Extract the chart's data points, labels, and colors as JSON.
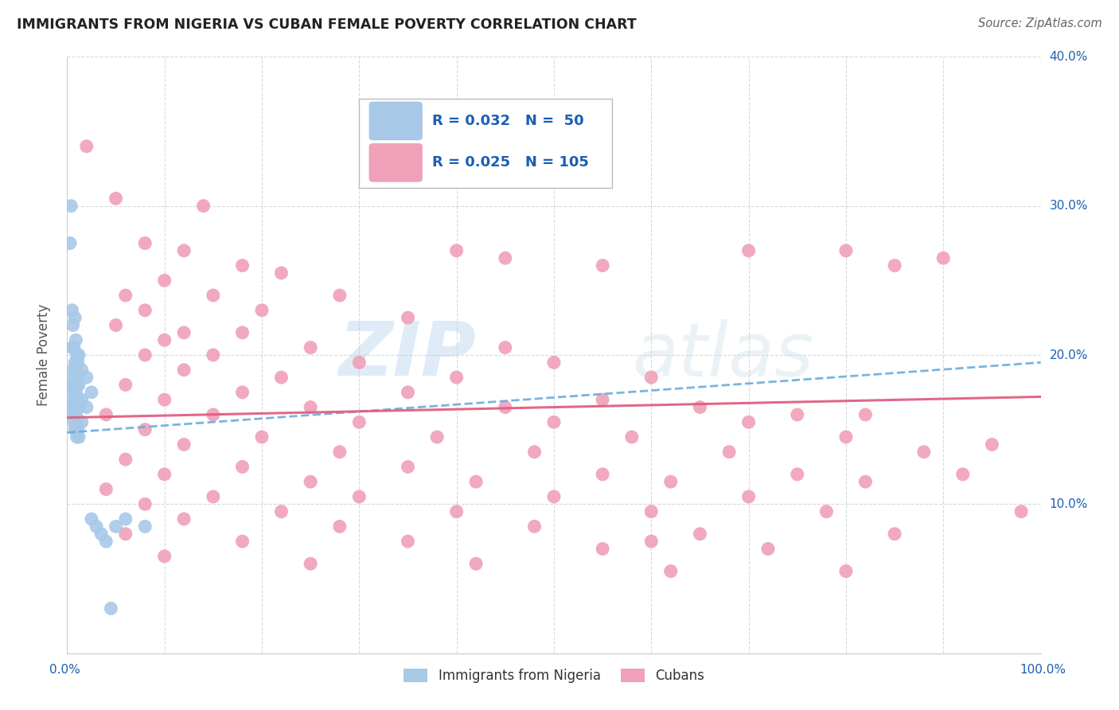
{
  "title": "IMMIGRANTS FROM NIGERIA VS CUBAN FEMALE POVERTY CORRELATION CHART",
  "source": "Source: ZipAtlas.com",
  "ylabel": "Female Poverty",
  "xlim": [
    0,
    100
  ],
  "ylim": [
    0,
    40
  ],
  "grid_color": "#d0d0d0",
  "background_color": "#ffffff",
  "nigeria_color": "#a8c8e8",
  "cuba_color": "#f0a0b8",
  "legend_color": "#1a5fb4",
  "nigeria_trend_color": "#6aacdc",
  "cuba_trend_color": "#e06080",
  "watermark_zip": "ZIP",
  "watermark_atlas": "atlas",
  "nigeria_trend": [
    0,
    100,
    14.8,
    19.5
  ],
  "cuba_trend": [
    0,
    100,
    15.8,
    17.2
  ],
  "nigeria_points": [
    [
      0.2,
      16.5
    ],
    [
      0.3,
      27.5
    ],
    [
      0.4,
      30.0
    ],
    [
      0.5,
      23.0
    ],
    [
      0.5,
      20.5
    ],
    [
      0.5,
      18.0
    ],
    [
      0.5,
      16.0
    ],
    [
      0.6,
      22.0
    ],
    [
      0.6,
      19.0
    ],
    [
      0.6,
      17.5
    ],
    [
      0.7,
      20.5
    ],
    [
      0.7,
      18.5
    ],
    [
      0.7,
      17.0
    ],
    [
      0.7,
      15.5
    ],
    [
      0.8,
      22.5
    ],
    [
      0.8,
      19.5
    ],
    [
      0.8,
      18.0
    ],
    [
      0.8,
      16.5
    ],
    [
      0.8,
      15.0
    ],
    [
      0.9,
      21.0
    ],
    [
      0.9,
      19.0
    ],
    [
      0.9,
      17.5
    ],
    [
      0.9,
      16.0
    ],
    [
      1.0,
      20.0
    ],
    [
      1.0,
      18.5
    ],
    [
      1.0,
      17.0
    ],
    [
      1.0,
      15.5
    ],
    [
      1.0,
      14.5
    ],
    [
      1.1,
      19.5
    ],
    [
      1.1,
      18.0
    ],
    [
      1.1,
      16.5
    ],
    [
      1.1,
      15.0
    ],
    [
      1.2,
      20.0
    ],
    [
      1.2,
      18.0
    ],
    [
      1.2,
      16.5
    ],
    [
      1.2,
      14.5
    ],
    [
      1.5,
      19.0
    ],
    [
      1.5,
      17.0
    ],
    [
      1.5,
      15.5
    ],
    [
      2.0,
      18.5
    ],
    [
      2.0,
      16.5
    ],
    [
      2.5,
      17.5
    ],
    [
      2.5,
      9.0
    ],
    [
      3.0,
      8.5
    ],
    [
      3.5,
      8.0
    ],
    [
      4.0,
      7.5
    ],
    [
      4.5,
      3.0
    ],
    [
      5.0,
      8.5
    ],
    [
      6.0,
      9.0
    ],
    [
      8.0,
      8.5
    ]
  ],
  "cuba_points": [
    [
      2.0,
      34.0
    ],
    [
      5.0,
      30.5
    ],
    [
      14.0,
      30.0
    ],
    [
      8.0,
      27.5
    ],
    [
      12.0,
      27.0
    ],
    [
      40.0,
      27.0
    ],
    [
      70.0,
      27.0
    ],
    [
      80.0,
      27.0
    ],
    [
      18.0,
      26.0
    ],
    [
      45.0,
      26.5
    ],
    [
      85.0,
      26.0
    ],
    [
      90.0,
      26.5
    ],
    [
      10.0,
      25.0
    ],
    [
      22.0,
      25.5
    ],
    [
      55.0,
      26.0
    ],
    [
      6.0,
      24.0
    ],
    [
      15.0,
      24.0
    ],
    [
      28.0,
      24.0
    ],
    [
      8.0,
      23.0
    ],
    [
      20.0,
      23.0
    ],
    [
      35.0,
      22.5
    ],
    [
      5.0,
      22.0
    ],
    [
      12.0,
      21.5
    ],
    [
      18.0,
      21.5
    ],
    [
      10.0,
      21.0
    ],
    [
      25.0,
      20.5
    ],
    [
      45.0,
      20.5
    ],
    [
      8.0,
      20.0
    ],
    [
      15.0,
      20.0
    ],
    [
      30.0,
      19.5
    ],
    [
      50.0,
      19.5
    ],
    [
      12.0,
      19.0
    ],
    [
      22.0,
      18.5
    ],
    [
      40.0,
      18.5
    ],
    [
      60.0,
      18.5
    ],
    [
      6.0,
      18.0
    ],
    [
      18.0,
      17.5
    ],
    [
      35.0,
      17.5
    ],
    [
      55.0,
      17.0
    ],
    [
      10.0,
      17.0
    ],
    [
      25.0,
      16.5
    ],
    [
      45.0,
      16.5
    ],
    [
      65.0,
      16.5
    ],
    [
      4.0,
      16.0
    ],
    [
      15.0,
      16.0
    ],
    [
      30.0,
      15.5
    ],
    [
      50.0,
      15.5
    ],
    [
      70.0,
      15.5
    ],
    [
      8.0,
      15.0
    ],
    [
      20.0,
      14.5
    ],
    [
      38.0,
      14.5
    ],
    [
      58.0,
      14.5
    ],
    [
      80.0,
      14.5
    ],
    [
      12.0,
      14.0
    ],
    [
      28.0,
      13.5
    ],
    [
      48.0,
      13.5
    ],
    [
      68.0,
      13.5
    ],
    [
      88.0,
      13.5
    ],
    [
      6.0,
      13.0
    ],
    [
      18.0,
      12.5
    ],
    [
      35.0,
      12.5
    ],
    [
      55.0,
      12.0
    ],
    [
      75.0,
      12.0
    ],
    [
      10.0,
      12.0
    ],
    [
      25.0,
      11.5
    ],
    [
      42.0,
      11.5
    ],
    [
      62.0,
      11.5
    ],
    [
      82.0,
      11.5
    ],
    [
      4.0,
      11.0
    ],
    [
      15.0,
      10.5
    ],
    [
      30.0,
      10.5
    ],
    [
      50.0,
      10.5
    ],
    [
      70.0,
      10.5
    ],
    [
      8.0,
      10.0
    ],
    [
      22.0,
      9.5
    ],
    [
      40.0,
      9.5
    ],
    [
      60.0,
      9.5
    ],
    [
      78.0,
      9.5
    ],
    [
      12.0,
      9.0
    ],
    [
      28.0,
      8.5
    ],
    [
      48.0,
      8.5
    ],
    [
      65.0,
      8.0
    ],
    [
      85.0,
      8.0
    ],
    [
      6.0,
      8.0
    ],
    [
      18.0,
      7.5
    ],
    [
      35.0,
      7.5
    ],
    [
      55.0,
      7.0
    ],
    [
      72.0,
      7.0
    ],
    [
      10.0,
      6.5
    ],
    [
      25.0,
      6.0
    ],
    [
      42.0,
      6.0
    ],
    [
      62.0,
      5.5
    ],
    [
      80.0,
      5.5
    ],
    [
      60.0,
      7.5
    ],
    [
      75.0,
      16.0
    ],
    [
      82.0,
      16.0
    ],
    [
      95.0,
      14.0
    ],
    [
      92.0,
      12.0
    ],
    [
      98.0,
      9.5
    ]
  ]
}
